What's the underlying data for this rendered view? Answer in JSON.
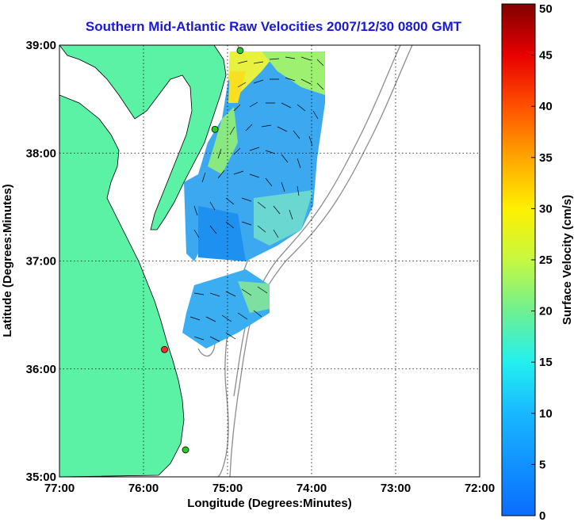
{
  "title": "Southern Mid-Atlantic Raw Velocities 2007/12/30 0800 GMT",
  "map": {
    "xlabel": "Longitude (Degrees:Minutes)",
    "ylabel": "Latitude (Degrees:Minutes)",
    "x_ticks": [
      "77:00",
      "76:00",
      "75:00",
      "74:00",
      "73:00",
      "72:00"
    ],
    "y_ticks": [
      "39:00",
      "38:00",
      "37:00",
      "36:00",
      "35:00"
    ],
    "lon_range": [
      -77,
      -72
    ],
    "lat_range": [
      35,
      39
    ],
    "grid": "dotted",
    "land_color": "#5cf2a6",
    "bathymetry_color": "#8c8c8c",
    "radar_stations": [
      {
        "lon": -74.85,
        "lat": 38.95,
        "color": "#22cc22"
      },
      {
        "lon": -75.15,
        "lat": 38.22,
        "color": "#22cc22"
      },
      {
        "lon": -75.75,
        "lat": 36.18,
        "color": "#ff2a2a"
      },
      {
        "lon": -75.5,
        "lat": 35.25,
        "color": "#22cc22"
      }
    ]
  },
  "colorbar": {
    "label": "Surface Velocity (cm/s)",
    "ticks": [
      "0",
      "5",
      "10",
      "15",
      "20",
      "25",
      "30",
      "35",
      "40",
      "45",
      "50"
    ],
    "min": 0,
    "max": 50
  }
}
